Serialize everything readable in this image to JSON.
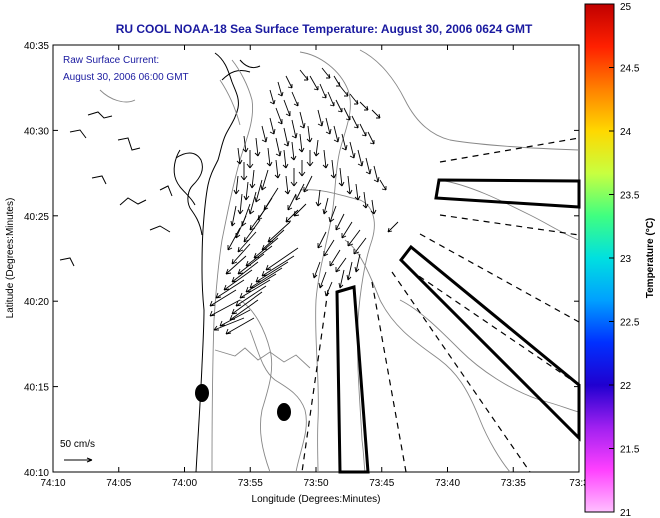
{
  "title": "RU COOL  NOAA-18  Sea Surface Temperature:  August 30, 2006 0624 GMT",
  "annotation": {
    "line1": "Raw Surface Current:",
    "line2": "August 30, 2006 06:00 GMT"
  },
  "scale": {
    "label": "50 cm/s",
    "value": 50
  },
  "axes": {
    "xlabel": "Longitude (Degrees:Minutes)",
    "ylabel": "Latitude (Degrees:Minutes)",
    "xticks": [
      "74:10",
      "74:05",
      "74:00",
      "73:55",
      "73:50",
      "73:45",
      "73:40",
      "73:35",
      "73:3"
    ],
    "yticks": [
      "40:35",
      "40:30",
      "40:25",
      "40:20",
      "40:15",
      "40:10"
    ],
    "xlim_min": [
      -74.1667,
      -73.5
    ],
    "ylim_min": [
      40.1667,
      40.5833
    ]
  },
  "colorbar": {
    "label": "Temperature (°C)",
    "ticks": [
      "25",
      "24.5",
      "24",
      "23.5",
      "23",
      "22.5",
      "22",
      "21.5",
      "21"
    ],
    "range": [
      21,
      25
    ],
    "colors": [
      "#c00000",
      "#ff2000",
      "#ff8000",
      "#ffd800",
      "#c8ff40",
      "#40ff80",
      "#00e0e0",
      "#00a0ff",
      "#0030ff",
      "#2000d0",
      "#a020f0",
      "#ff40ff",
      "#ffc0ff"
    ]
  },
  "chart_data": {
    "type": "scatter",
    "title": "RU COOL  NOAA-18  Sea Surface Temperature:  August 30, 2006 0624 GMT",
    "xlabel": "Longitude (Degrees:Minutes)",
    "ylabel": "Latitude (Degrees:Minutes)",
    "description_series": [
      {
        "name": "buoys",
        "points": [
          [
            -73.98,
            40.245
          ],
          [
            -73.87,
            40.225
          ]
        ]
      }
    ]
  },
  "colors": {
    "text": "#1a1aa0",
    "frame": "#000000",
    "contour": "#888888"
  }
}
